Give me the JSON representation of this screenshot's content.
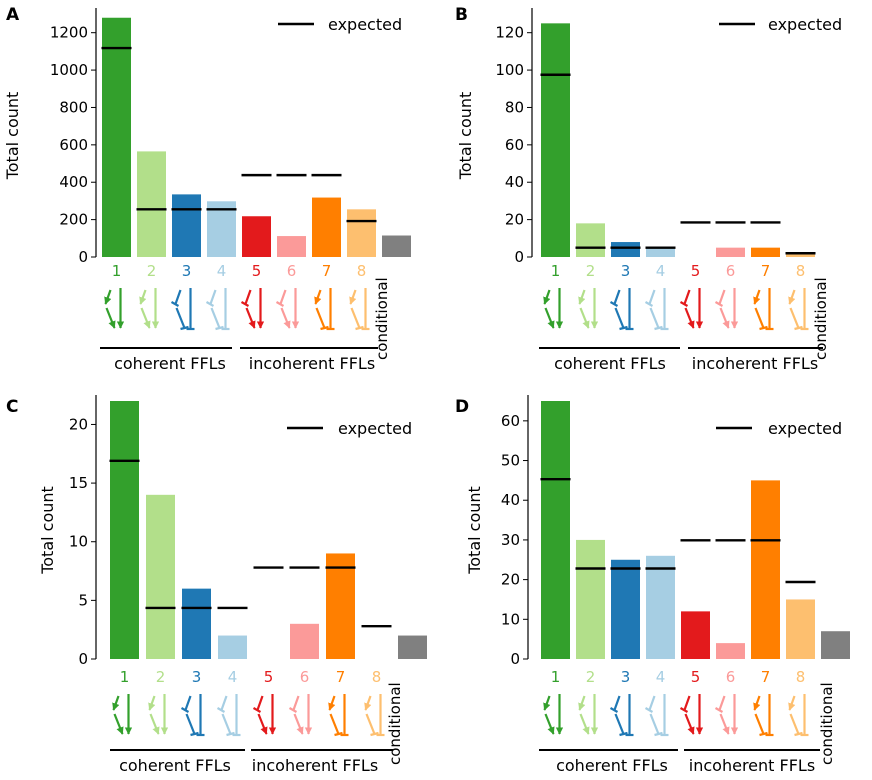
{
  "categories": [
    "1",
    "2",
    "3",
    "4",
    "5",
    "6",
    "7",
    "8"
  ],
  "conditional_label": "conditional",
  "group_labels": [
    "coherent FFLs",
    "incoherent FFLs"
  ],
  "legend_label": "expected",
  "colors": {
    "bars": [
      "#33a02c",
      "#b2df8a",
      "#1f78b4",
      "#a6cee3",
      "#e31a1c",
      "#fb9a99",
      "#ff7f00",
      "#fdbf6f"
    ],
    "conditional": "#808080",
    "expected": "#000000"
  },
  "icons": [
    "ffl-type-1-icon",
    "ffl-type-2-icon",
    "ffl-type-3-icon",
    "ffl-type-4-icon",
    "ffl-type-5-icon",
    "ffl-type-6-icon",
    "ffl-type-7-icon",
    "ffl-type-8-icon"
  ],
  "chart_data": [
    {
      "panel": "A",
      "type": "bar",
      "ylabel": "Total count",
      "ylim": [
        0,
        1300
      ],
      "yticks": [
        0,
        200,
        400,
        600,
        800,
        1000,
        1200
      ],
      "values": [
        1280,
        565,
        335,
        298,
        218,
        112,
        318,
        255
      ],
      "expected": [
        1118,
        255,
        255,
        255,
        438,
        438,
        438,
        192
      ],
      "conditional": 115
    },
    {
      "panel": "B",
      "type": "bar",
      "ylabel": "Total count",
      "ylim": [
        0,
        130
      ],
      "yticks": [
        0,
        20,
        40,
        60,
        80,
        100,
        120
      ],
      "values": [
        125,
        18,
        8,
        5,
        0,
        5,
        5,
        2
      ],
      "expected": [
        97.5,
        5,
        5,
        5,
        18.5,
        18.5,
        18.5,
        2
      ],
      "conditional": 0
    },
    {
      "panel": "C",
      "type": "bar",
      "ylabel": "Total count",
      "ylim": [
        0,
        22
      ],
      "yticks": [
        0,
        5,
        10,
        15,
        20
      ],
      "values": [
        22,
        14,
        6,
        2,
        0,
        3,
        9,
        0
      ],
      "expected": [
        16.9,
        4.35,
        4.35,
        4.35,
        7.8,
        7.8,
        7.8,
        2.8
      ],
      "conditional": 2
    },
    {
      "panel": "D",
      "type": "bar",
      "ylabel": "Total count",
      "ylim": [
        0,
        65
      ],
      "yticks": [
        0,
        10,
        20,
        30,
        40,
        50,
        60
      ],
      "values": [
        65,
        30,
        25,
        26,
        12,
        4,
        45,
        15
      ],
      "expected": [
        45.3,
        22.8,
        22.8,
        22.8,
        29.9,
        29.9,
        29.9,
        19.4
      ],
      "conditional": 7
    }
  ]
}
